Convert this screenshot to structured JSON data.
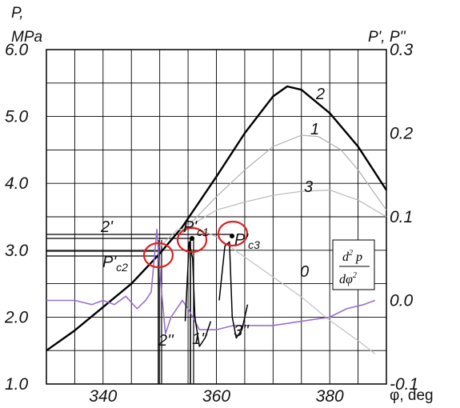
{
  "chart_data": {
    "type": "line",
    "title": "",
    "axes": {
      "x": {
        "label": "φ, deg",
        "range": [
          330,
          390
        ],
        "ticks": [
          340,
          360,
          380
        ]
      },
      "y_left": {
        "label": "P, MPa",
        "label_lines": [
          "P,",
          "MPa"
        ],
        "range": [
          1.0,
          6.0
        ],
        "ticks": [
          "1.0",
          "2.0",
          "3.0",
          "4.0",
          "5.0",
          "6.0"
        ]
      },
      "y_right": {
        "label": "P', P''",
        "range": [
          -0.1,
          0.3
        ],
        "ticks": [
          "-0.1",
          "0.0",
          "0.1",
          "0.2",
          "0.3"
        ]
      }
    },
    "grid": true,
    "series": [
      {
        "name": "2",
        "color": "#000000",
        "x": [
          330,
          335,
          340,
          345,
          350,
          354,
          356,
          360,
          365,
          370,
          372.5,
          375,
          380,
          385,
          390
        ],
        "y": [
          1.5,
          1.8,
          2.15,
          2.5,
          2.95,
          3.35,
          3.6,
          4.1,
          4.75,
          5.3,
          5.45,
          5.4,
          5.05,
          4.55,
          3.9
        ]
      },
      {
        "name": "1",
        "color": "#b0b0b0",
        "x": [
          354,
          356,
          360,
          365,
          370,
          375,
          378,
          382,
          385,
          390
        ],
        "y": [
          3.3,
          3.45,
          3.8,
          4.2,
          4.55,
          4.72,
          4.7,
          4.5,
          4.2,
          3.6
        ]
      },
      {
        "name": "3",
        "color": "#b8b8b8",
        "x": [
          354,
          356,
          360,
          365,
          370,
          375,
          380,
          385,
          390
        ],
        "y": [
          3.25,
          3.4,
          3.6,
          3.72,
          3.82,
          3.88,
          3.9,
          3.75,
          3.5
        ]
      },
      {
        "name": "0",
        "color": "#c0c0c0",
        "x": [
          350,
          353,
          356,
          360,
          365,
          370,
          375,
          380,
          385,
          388
        ],
        "y": [
          3.05,
          3.3,
          3.35,
          3.2,
          2.9,
          2.6,
          2.3,
          1.95,
          1.65,
          1.45
        ]
      },
      {
        "name": "d²p/dφ² (2'')",
        "color": "#9a70cc",
        "x": [
          330,
          332,
          335,
          338,
          340,
          342,
          344,
          346,
          347.5,
          348.5,
          349.5,
          350.2,
          351,
          352,
          353,
          354,
          355,
          357,
          360,
          363,
          366,
          370,
          375,
          380,
          383,
          386,
          388
        ],
        "y": [
          0.0,
          0.0,
          0.0,
          -0.005,
          0.0,
          -0.005,
          0.005,
          -0.01,
          0.0,
          0.01,
          0.085,
          0.02,
          -0.04,
          -0.02,
          -0.01,
          0.0,
          -0.01,
          -0.035,
          -0.035,
          -0.03,
          -0.03,
          -0.03,
          -0.025,
          -0.02,
          -0.01,
          -0.005,
          0.0
        ]
      },
      {
        "name": "1''",
        "color": "#000000",
        "x": [
          354.5,
          355.2,
          355.8,
          356.2,
          357,
          358,
          359
        ],
        "y": [
          -0.025,
          0.07,
          0.05,
          -0.02,
          -0.055,
          -0.045,
          -0.025
        ]
      },
      {
        "name": "3''",
        "color": "#000000",
        "x": [
          360.5,
          361.5,
          362.3,
          362.8,
          363.5,
          364.5,
          365.5
        ],
        "y": [
          0.0,
          0.065,
          0.07,
          -0.02,
          -0.045,
          -0.035,
          -0.005
        ]
      }
    ],
    "annotations": [
      "2'",
      "P'c1",
      "P'c2",
      "P'c3",
      "2''",
      "1''",
      "3''"
    ],
    "inset_label": "d²p/dφ²",
    "series_labels": [
      "2",
      "1",
      "3",
      "0"
    ]
  }
}
